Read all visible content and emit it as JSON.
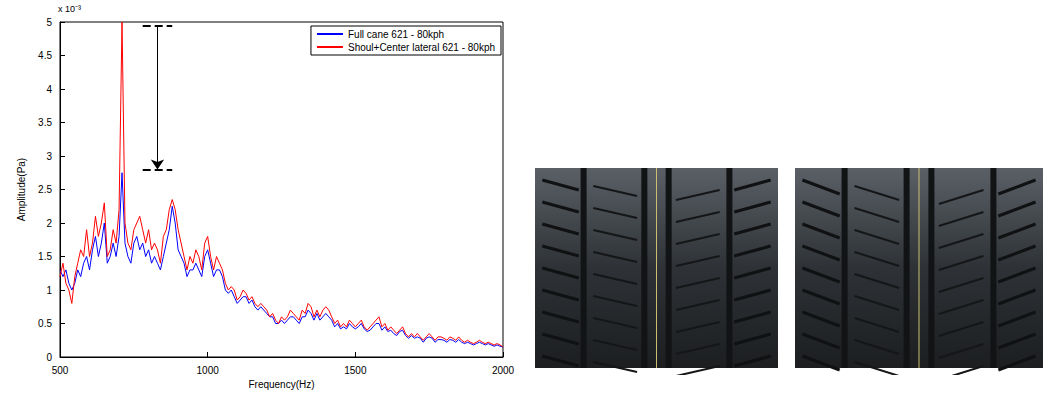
{
  "chart_data": {
    "type": "line",
    "xlabel": "Frequency(Hz)",
    "ylabel": "Amplitude(Pa)",
    "annotations": [
      "x 10⁻³"
    ],
    "arrow": {
      "x": [
        780,
        880
      ],
      "from": 4.95,
      "to": 2.8
    },
    "x": [
      500,
      510,
      520,
      530,
      540,
      550,
      560,
      570,
      580,
      590,
      600,
      610,
      620,
      630,
      640,
      650,
      660,
      670,
      680,
      690,
      700,
      710,
      720,
      730,
      740,
      750,
      760,
      770,
      780,
      790,
      800,
      810,
      820,
      830,
      840,
      850,
      860,
      870,
      880,
      890,
      900,
      910,
      920,
      930,
      940,
      950,
      960,
      970,
      980,
      990,
      1000,
      1010,
      1020,
      1030,
      1040,
      1050,
      1060,
      1070,
      1080,
      1090,
      1100,
      1110,
      1120,
      1130,
      1140,
      1150,
      1160,
      1170,
      1180,
      1190,
      1200,
      1210,
      1220,
      1230,
      1240,
      1250,
      1260,
      1270,
      1280,
      1290,
      1300,
      1310,
      1320,
      1330,
      1340,
      1350,
      1360,
      1370,
      1380,
      1390,
      1400,
      1410,
      1420,
      1430,
      1440,
      1450,
      1460,
      1470,
      1480,
      1490,
      1500,
      1510,
      1520,
      1530,
      1540,
      1550,
      1560,
      1570,
      1580,
      1590,
      1600,
      1610,
      1620,
      1630,
      1640,
      1650,
      1660,
      1670,
      1680,
      1690,
      1700,
      1710,
      1720,
      1730,
      1740,
      1750,
      1760,
      1770,
      1780,
      1790,
      1800,
      1810,
      1820,
      1830,
      1840,
      1850,
      1860,
      1870,
      1880,
      1890,
      1900,
      1910,
      1920,
      1930,
      1940,
      1950,
      1960,
      1970,
      1980,
      1990,
      2000
    ],
    "series": [
      {
        "name": "Full cane 621 - 80kph",
        "color": "#0000ff",
        "values": [
          1.3,
          1.2,
          1.3,
          1.1,
          1.0,
          1.1,
          1.3,
          1.2,
          1.4,
          1.5,
          1.3,
          1.6,
          1.8,
          1.5,
          1.7,
          2.0,
          1.4,
          1.5,
          1.7,
          1.5,
          1.8,
          2.75,
          1.7,
          1.5,
          1.4,
          1.7,
          1.8,
          1.6,
          1.7,
          1.5,
          1.6,
          1.4,
          1.5,
          1.4,
          1.3,
          1.5,
          1.7,
          1.9,
          2.25,
          2.0,
          1.6,
          1.5,
          1.4,
          1.2,
          1.3,
          1.3,
          1.4,
          1.3,
          1.2,
          1.5,
          1.6,
          1.4,
          1.2,
          1.3,
          1.3,
          1.2,
          1.0,
          0.95,
          1.0,
          0.9,
          0.8,
          0.85,
          0.9,
          0.9,
          0.8,
          0.85,
          0.75,
          0.7,
          0.75,
          0.7,
          0.65,
          0.6,
          0.6,
          0.5,
          0.5,
          0.55,
          0.5,
          0.55,
          0.6,
          0.6,
          0.55,
          0.5,
          0.6,
          0.6,
          0.7,
          0.65,
          0.55,
          0.65,
          0.55,
          0.6,
          0.65,
          0.6,
          0.55,
          0.45,
          0.5,
          0.42,
          0.45,
          0.42,
          0.5,
          0.45,
          0.42,
          0.45,
          0.5,
          0.42,
          0.38,
          0.4,
          0.45,
          0.5,
          0.5,
          0.4,
          0.45,
          0.38,
          0.4,
          0.35,
          0.32,
          0.38,
          0.4,
          0.32,
          0.28,
          0.32,
          0.28,
          0.3,
          0.28,
          0.22,
          0.28,
          0.3,
          0.28,
          0.22,
          0.26,
          0.26,
          0.25,
          0.22,
          0.26,
          0.25,
          0.22,
          0.26,
          0.22,
          0.2,
          0.22,
          0.2,
          0.18,
          0.2,
          0.22,
          0.2,
          0.18,
          0.2,
          0.18,
          0.16,
          0.18,
          0.16,
          0.15
        ]
      },
      {
        "name": "Shoul+Center lateral 621 - 80kph",
        "color": "#ff0000",
        "values": [
          1.2,
          1.4,
          1.1,
          1.0,
          0.8,
          1.2,
          1.4,
          1.6,
          1.5,
          1.9,
          1.5,
          1.7,
          2.1,
          1.8,
          2.0,
          2.3,
          1.5,
          1.6,
          1.9,
          1.7,
          2.2,
          5.0,
          2.0,
          1.7,
          1.6,
          1.9,
          2.0,
          2.1,
          1.9,
          1.7,
          1.9,
          1.6,
          1.7,
          1.6,
          1.4,
          1.8,
          1.9,
          2.2,
          2.35,
          2.2,
          1.9,
          1.7,
          1.5,
          1.3,
          1.5,
          1.4,
          1.6,
          1.5,
          1.3,
          1.7,
          1.8,
          1.5,
          1.3,
          1.5,
          1.4,
          1.3,
          1.1,
          1.0,
          1.05,
          1.0,
          0.85,
          0.9,
          1.0,
          0.95,
          0.85,
          0.9,
          0.8,
          0.75,
          0.8,
          0.75,
          0.7,
          0.6,
          0.65,
          0.55,
          0.5,
          0.6,
          0.55,
          0.6,
          0.7,
          0.65,
          0.6,
          0.55,
          0.7,
          0.65,
          0.8,
          0.75,
          0.6,
          0.7,
          0.6,
          0.7,
          0.75,
          0.7,
          0.6,
          0.5,
          0.55,
          0.45,
          0.5,
          0.45,
          0.55,
          0.5,
          0.45,
          0.5,
          0.55,
          0.45,
          0.4,
          0.45,
          0.5,
          0.55,
          0.6,
          0.45,
          0.5,
          0.4,
          0.45,
          0.4,
          0.35,
          0.4,
          0.45,
          0.35,
          0.3,
          0.35,
          0.3,
          0.35,
          0.3,
          0.25,
          0.3,
          0.35,
          0.3,
          0.25,
          0.3,
          0.3,
          0.28,
          0.25,
          0.3,
          0.28,
          0.25,
          0.3,
          0.25,
          0.22,
          0.25,
          0.22,
          0.2,
          0.22,
          0.25,
          0.22,
          0.2,
          0.22,
          0.2,
          0.18,
          0.2,
          0.18,
          0.15
        ]
      }
    ],
    "xlim": [
      500,
      2000
    ],
    "xticks": [
      500,
      1000,
      1500,
      2000
    ],
    "ylim": [
      0,
      5
    ],
    "yticks": [
      0,
      0.5,
      1,
      1.5,
      2,
      2.5,
      3,
      3.5,
      4,
      4.5,
      5
    ],
    "grid": false,
    "legend": "upper right"
  }
}
